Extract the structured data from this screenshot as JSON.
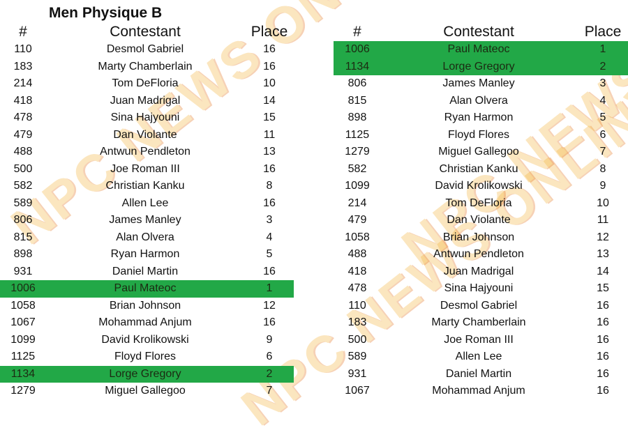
{
  "title": "Men Physique B",
  "watermark": "NPC NEWS ONLINE",
  "highlight_color": "#22a847",
  "headers": {
    "number": "#",
    "contestant": "Contestant",
    "place": "Place"
  },
  "left_table": [
    {
      "number": "110",
      "name": "Desmol Gabriel",
      "place": "16"
    },
    {
      "number": "183",
      "name": "Marty Chamberlain",
      "place": "16"
    },
    {
      "number": "214",
      "name": "Tom DeFloria",
      "place": "10"
    },
    {
      "number": "418",
      "name": "Juan Madrigal",
      "place": "14"
    },
    {
      "number": "478",
      "name": "Sina Hajyouni",
      "place": "15"
    },
    {
      "number": "479",
      "name": "Dan Violante",
      "place": "11"
    },
    {
      "number": "488",
      "name": "Antwun Pendleton",
      "place": "13"
    },
    {
      "number": "500",
      "name": "Joe Roman III",
      "place": "16"
    },
    {
      "number": "582",
      "name": "Christian Kanku",
      "place": "8"
    },
    {
      "number": "589",
      "name": "Allen Lee",
      "place": "16"
    },
    {
      "number": "806",
      "name": "James Manley",
      "place": "3"
    },
    {
      "number": "815",
      "name": "Alan Olvera",
      "place": "4"
    },
    {
      "number": "898",
      "name": "Ryan Harmon",
      "place": "5"
    },
    {
      "number": "931",
      "name": "Daniel Martin",
      "place": "16"
    },
    {
      "number": "1006",
      "name": "Paul Mateoc",
      "place": "1",
      "highlight": true
    },
    {
      "number": "1058",
      "name": "Brian Johnson",
      "place": "12"
    },
    {
      "number": "1067",
      "name": "Mohammad Anjum",
      "place": "16"
    },
    {
      "number": "1099",
      "name": "David Krolikowski",
      "place": "9"
    },
    {
      "number": "1125",
      "name": "Floyd Flores",
      "place": "6"
    },
    {
      "number": "1134",
      "name": "Lorge Gregory",
      "place": "2",
      "highlight": true
    },
    {
      "number": "1279",
      "name": "Miguel Gallegoo",
      "place": "7"
    }
  ],
  "right_table": [
    {
      "number": "1006",
      "name": "Paul Mateoc",
      "place": "1",
      "highlight": true
    },
    {
      "number": "1134",
      "name": "Lorge Gregory",
      "place": "2",
      "highlight": true
    },
    {
      "number": "806",
      "name": "James Manley",
      "place": "3"
    },
    {
      "number": "815",
      "name": "Alan Olvera",
      "place": "4"
    },
    {
      "number": "898",
      "name": "Ryan Harmon",
      "place": "5"
    },
    {
      "number": "1125",
      "name": "Floyd Flores",
      "place": "6"
    },
    {
      "number": "1279",
      "name": "Miguel Gallegoo",
      "place": "7"
    },
    {
      "number": "582",
      "name": "Christian Kanku",
      "place": "8"
    },
    {
      "number": "1099",
      "name": "David Krolikowski",
      "place": "9"
    },
    {
      "number": "214",
      "name": "Tom DeFloria",
      "place": "10"
    },
    {
      "number": "479",
      "name": "Dan Violante",
      "place": "11"
    },
    {
      "number": "1058",
      "name": "Brian Johnson",
      "place": "12"
    },
    {
      "number": "488",
      "name": "Antwun Pendleton",
      "place": "13"
    },
    {
      "number": "418",
      "name": "Juan Madrigal",
      "place": "14"
    },
    {
      "number": "478",
      "name": "Sina Hajyouni",
      "place": "15"
    },
    {
      "number": "110",
      "name": "Desmol Gabriel",
      "place": "16"
    },
    {
      "number": "183",
      "name": "Marty Chamberlain",
      "place": "16"
    },
    {
      "number": "500",
      "name": "Joe Roman III",
      "place": "16"
    },
    {
      "number": "589",
      "name": "Allen Lee",
      "place": "16"
    },
    {
      "number": "931",
      "name": "Daniel Martin",
      "place": "16"
    },
    {
      "number": "1067",
      "name": "Mohammad Anjum",
      "place": "16"
    }
  ]
}
